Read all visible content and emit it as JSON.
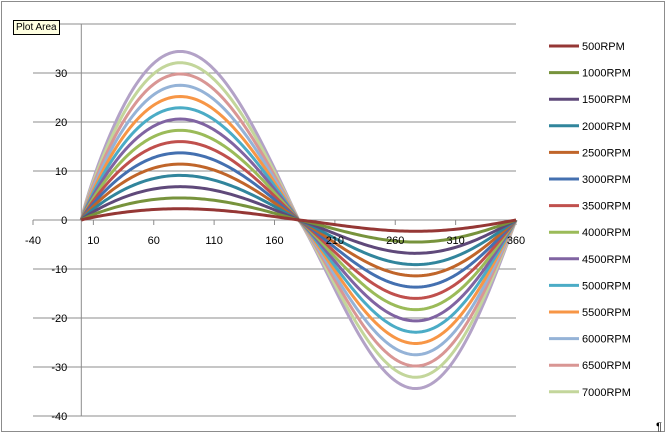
{
  "tooltip": "Plot Area",
  "end_mark": "¶",
  "chart_data": {
    "type": "line",
    "title": "",
    "xlabel": "",
    "ylabel": "",
    "xlim": [
      -40,
      360
    ],
    "ylim": [
      -40,
      40
    ],
    "x_axis_crosses_y": 0,
    "y_axis_crosses_x": 0,
    "x_ticks": [
      -40,
      10,
      60,
      110,
      160,
      210,
      260,
      310,
      360
    ],
    "y_ticks": [
      -40,
      -30,
      -20,
      -10,
      0,
      10,
      20,
      30
    ],
    "y_gridlines": true,
    "x_gridlines": false,
    "legend_position": "right",
    "curve_shape": "sine over 0-360 degrees, peak at about 75",
    "x": [
      0,
      30,
      60,
      75,
      90,
      120,
      150,
      180,
      210,
      240,
      270,
      285,
      300,
      330,
      360
    ],
    "series": [
      {
        "name": "500RPM",
        "amplitude": 2.3,
        "values": [
          0,
          1.1,
          2.1,
          2.3,
          2.2,
          1.7,
          0.8,
          0,
          -0.8,
          -1.7,
          -2.2,
          -2.3,
          -2.1,
          -1.1,
          0
        ]
      },
      {
        "name": "1000RPM",
        "amplitude": 4.5,
        "values": [
          0,
          2.1,
          4.1,
          4.5,
          4.3,
          3.3,
          1.6,
          0,
          -1.6,
          -3.3,
          -4.3,
          -4.5,
          -4.1,
          -2.1,
          0
        ]
      },
      {
        "name": "1500RPM",
        "amplitude": 6.8,
        "values": [
          0,
          3.2,
          6.2,
          6.8,
          6.6,
          5.0,
          2.4,
          0,
          -2.4,
          -5.0,
          -6.6,
          -6.8,
          -6.2,
          -3.2,
          0
        ]
      },
      {
        "name": "2000RPM",
        "amplitude": 9.1,
        "values": [
          0,
          4.3,
          8.3,
          9.1,
          8.8,
          6.7,
          3.2,
          0,
          -3.2,
          -6.7,
          -8.8,
          -9.1,
          -8.3,
          -4.3,
          0
        ]
      },
      {
        "name": "2500RPM",
        "amplitude": 11.4,
        "values": [
          0,
          5.4,
          10.4,
          11.4,
          11.0,
          8.4,
          4.0,
          0,
          -4.0,
          -8.4,
          -11.0,
          -11.4,
          -10.4,
          -5.4,
          0
        ]
      },
      {
        "name": "3000RPM",
        "amplitude": 13.7,
        "values": [
          0,
          6.5,
          12.5,
          13.7,
          13.2,
          10.1,
          4.8,
          0,
          -4.8,
          -10.1,
          -13.2,
          -13.7,
          -12.5,
          -6.5,
          0
        ]
      },
      {
        "name": "3500RPM",
        "amplitude": 16.0,
        "values": [
          0,
          7.6,
          14.6,
          16.0,
          15.5,
          11.8,
          5.6,
          0,
          -5.6,
          -11.8,
          -15.5,
          -16.0,
          -14.6,
          -7.6,
          0
        ]
      },
      {
        "name": "4000RPM",
        "amplitude": 18.3,
        "values": [
          0,
          8.7,
          16.7,
          18.3,
          17.7,
          13.4,
          6.3,
          0,
          -6.3,
          -13.4,
          -17.7,
          -18.3,
          -16.7,
          -8.7,
          0
        ]
      },
      {
        "name": "4500RPM",
        "amplitude": 20.6,
        "values": [
          0,
          9.8,
          18.8,
          20.6,
          19.9,
          15.1,
          7.1,
          0,
          -7.1,
          -15.1,
          -19.9,
          -20.6,
          -18.8,
          -9.8,
          0
        ]
      },
      {
        "name": "5000RPM",
        "amplitude": 22.9,
        "values": [
          0,
          10.9,
          20.9,
          22.9,
          22.1,
          16.8,
          7.9,
          0,
          -7.9,
          -16.8,
          -22.1,
          -22.9,
          -20.9,
          -10.9,
          0
        ]
      },
      {
        "name": "5500RPM",
        "amplitude": 25.2,
        "values": [
          0,
          12.0,
          23.0,
          25.2,
          24.3,
          18.5,
          8.7,
          0,
          -8.7,
          -18.5,
          -24.3,
          -25.2,
          -23.0,
          -12.0,
          0
        ]
      },
      {
        "name": "6000RPM",
        "amplitude": 27.5,
        "values": [
          0,
          13.1,
          25.1,
          27.5,
          26.6,
          20.2,
          9.5,
          0,
          -9.5,
          -20.2,
          -26.6,
          -27.5,
          -25.1,
          -13.1,
          0
        ]
      },
      {
        "name": "6500RPM",
        "amplitude": 29.8,
        "values": [
          0,
          14.2,
          27.2,
          29.8,
          28.8,
          21.9,
          10.3,
          0,
          -10.3,
          -21.9,
          -28.8,
          -29.8,
          -27.2,
          -14.2,
          0
        ]
      },
      {
        "name": "7000RPM",
        "amplitude": 32.1,
        "values": [
          0,
          15.3,
          29.3,
          32.1,
          31.0,
          23.6,
          11.1,
          0,
          -11.1,
          -23.6,
          -31.0,
          -32.1,
          -29.3,
          -15.3,
          0
        ]
      },
      {
        "name": "",
        "amplitude": 34.4,
        "values": [
          0,
          16.4,
          31.4,
          34.4,
          33.2,
          25.3,
          11.9,
          0,
          -11.9,
          -25.3,
          -33.2,
          -34.4,
          -31.4,
          -16.4,
          0
        ]
      }
    ],
    "colors": [
      "#953735",
      "#77933c",
      "#5f497a",
      "#31859c",
      "#c0652a",
      "#4470b0",
      "#c0504d",
      "#9bbb59",
      "#8064a2",
      "#4bacc6",
      "#f79646",
      "#95b3d7",
      "#d99694",
      "#c3d69b",
      "#b3a2c7"
    ]
  }
}
